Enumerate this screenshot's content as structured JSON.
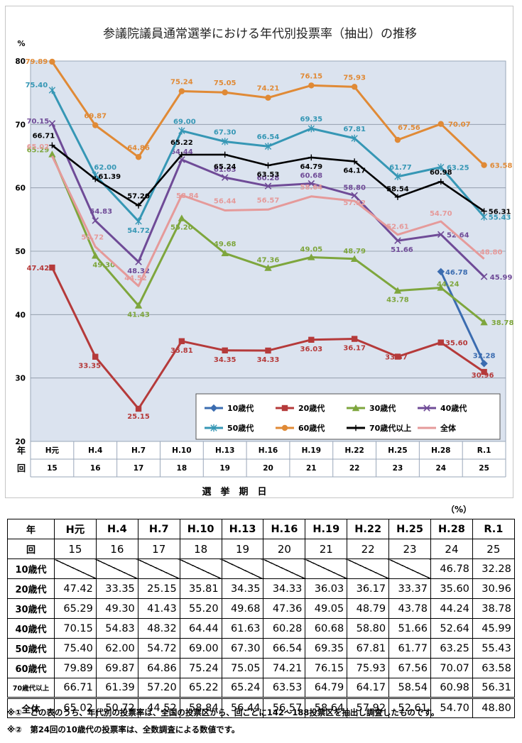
{
  "chart_data": {
    "type": "line",
    "title": "参議院議員通常選挙における年代別投票率（抽出）の推移",
    "ylabel": "%",
    "xlabel": "選挙期日",
    "ylim": [
      20,
      80
    ],
    "yticks": [
      "20",
      "30",
      "40",
      "50",
      "60",
      "70",
      "80"
    ],
    "grid": true,
    "legend_position": "inside-bottom-right",
    "row_label_era": "年",
    "row_label_index": "回",
    "categories": [
      "H元",
      "H.4",
      "H.7",
      "H.10",
      "H.13",
      "H.16",
      "H.19",
      "H.22",
      "H.25",
      "H.28",
      "R.1"
    ],
    "election_numbers": [
      "15",
      "16",
      "17",
      "18",
      "19",
      "20",
      "21",
      "22",
      "23",
      "24",
      "25"
    ],
    "series": [
      {
        "name": "10歳代",
        "color": "#3b6cb0",
        "marker": "diamond",
        "values": [
          null,
          null,
          null,
          null,
          null,
          null,
          null,
          null,
          null,
          46.78,
          32.28
        ],
        "labels": [
          null,
          null,
          null,
          null,
          null,
          null,
          null,
          null,
          null,
          "46.78",
          "32.28"
        ]
      },
      {
        "name": "20歳代",
        "color": "#b53a3a",
        "marker": "square",
        "values": [
          47.42,
          33.35,
          25.15,
          35.81,
          34.35,
          34.33,
          36.03,
          36.17,
          33.37,
          35.6,
          30.96
        ],
        "labels": [
          "47.42",
          "33.35",
          "25.15",
          "35.81",
          "34.35",
          "34.33",
          "36.03",
          "36.17",
          "33.37",
          "35.60",
          "30.96"
        ]
      },
      {
        "name": "30歳代",
        "color": "#7ea63d",
        "marker": "triangle",
        "values": [
          65.29,
          49.3,
          41.43,
          55.2,
          49.68,
          47.36,
          49.05,
          48.79,
          43.78,
          44.24,
          38.78
        ],
        "labels": [
          "65.29",
          "49.30",
          "41.43",
          "55.20",
          "49.68",
          "47.36",
          "49.05",
          "48.79",
          "43.78",
          "44.24",
          "38.78"
        ]
      },
      {
        "name": "40歳代",
        "color": "#6f4b97",
        "marker": "x",
        "values": [
          70.15,
          54.83,
          48.32,
          64.44,
          61.63,
          60.28,
          60.68,
          58.8,
          51.66,
          52.64,
          45.99
        ],
        "labels": [
          "70.15",
          "54.83",
          "48.32",
          "64.44",
          "61.63",
          "60.28",
          "60.68",
          "58.80",
          "51.66",
          "52.64",
          "45.99"
        ]
      },
      {
        "name": "50歳代",
        "color": "#3697b5",
        "marker": "star",
        "values": [
          75.4,
          62.0,
          54.72,
          69.0,
          67.3,
          66.54,
          69.35,
          67.81,
          61.77,
          63.25,
          55.43
        ],
        "labels": [
          "75.40",
          "62.00",
          "54.72",
          "69.00",
          "67.30",
          "66.54",
          "69.35",
          "67.81",
          "61.77",
          "63.25",
          "55.43"
        ]
      },
      {
        "name": "60歳代",
        "color": "#e08a36",
        "marker": "circle",
        "values": [
          79.89,
          69.87,
          64.86,
          75.24,
          75.05,
          74.21,
          76.15,
          75.93,
          67.56,
          70.07,
          63.58
        ],
        "labels": [
          "79.89",
          "69.87",
          "64.86",
          "75.24",
          "75.05",
          "74.21",
          "76.15",
          "75.93",
          "67.56",
          "70.07",
          "63.58"
        ]
      },
      {
        "name": "70歳代以上",
        "color": "#000000",
        "marker": "plus",
        "values": [
          66.71,
          61.39,
          57.2,
          65.22,
          65.24,
          63.53,
          64.79,
          64.17,
          58.54,
          60.98,
          56.31
        ],
        "labels": [
          "66.71",
          "61.39",
          "57.20",
          "65.22",
          "65.24",
          "63.53",
          "64.79",
          "64.17",
          "58.54",
          "60.98",
          "56.31"
        ]
      },
      {
        "name": "全体",
        "color": "#e59a9a",
        "marker": "none",
        "values": [
          65.02,
          50.72,
          44.52,
          58.84,
          56.44,
          56.57,
          58.64,
          57.92,
          52.61,
          54.7,
          48.8
        ],
        "labels": [
          "65.02",
          "50.72",
          "44.52",
          "58.84",
          "56.44",
          "56.57",
          "58.64",
          "57.92",
          "52.61",
          "54.70",
          "48.80"
        ]
      }
    ]
  },
  "table": {
    "unit": "（%）",
    "header_era_label": "年",
    "header_index_label": "回",
    "eras": [
      "H元",
      "H.4",
      "H.7",
      "H.10",
      "H.13",
      "H.16",
      "H.19",
      "H.22",
      "H.25",
      "H.28",
      "R.1"
    ],
    "indices": [
      "15",
      "16",
      "17",
      "18",
      "19",
      "20",
      "21",
      "22",
      "23",
      "24",
      "25"
    ],
    "rows": [
      {
        "label": "10歳代",
        "values": [
          "",
          "",
          "",
          "",
          "",
          "",
          "",
          "",
          "",
          "46.78",
          "32.28"
        ]
      },
      {
        "label": "20歳代",
        "values": [
          "47.42",
          "33.35",
          "25.15",
          "35.81",
          "34.35",
          "34.33",
          "36.03",
          "36.17",
          "33.37",
          "35.60",
          "30.96"
        ]
      },
      {
        "label": "30歳代",
        "values": [
          "65.29",
          "49.30",
          "41.43",
          "55.20",
          "49.68",
          "47.36",
          "49.05",
          "48.79",
          "43.78",
          "44.24",
          "38.78"
        ]
      },
      {
        "label": "40歳代",
        "values": [
          "70.15",
          "54.83",
          "48.32",
          "64.44",
          "61.63",
          "60.28",
          "60.68",
          "58.80",
          "51.66",
          "52.64",
          "45.99"
        ]
      },
      {
        "label": "50歳代",
        "values": [
          "75.40",
          "62.00",
          "54.72",
          "69.00",
          "67.30",
          "66.54",
          "69.35",
          "67.81",
          "61.77",
          "63.25",
          "55.43"
        ]
      },
      {
        "label": "60歳代",
        "values": [
          "79.89",
          "69.87",
          "64.86",
          "75.24",
          "75.05",
          "74.21",
          "76.15",
          "75.93",
          "67.56",
          "70.07",
          "63.58"
        ]
      },
      {
        "label": "70歳代以上",
        "values": [
          "66.71",
          "61.39",
          "57.20",
          "65.22",
          "65.24",
          "63.53",
          "64.79",
          "64.17",
          "58.54",
          "60.98",
          "56.31"
        ]
      }
    ],
    "total_row": {
      "label": "全体",
      "values": [
        "65.02",
        "50.72",
        "44.52",
        "58.84",
        "56.44",
        "56.57",
        "58.64",
        "57.92",
        "52.61",
        "54.70",
        "48.80"
      ]
    }
  },
  "footnotes": [
    "※①　この表のうち、年代別の投票率は、全国の投票区から、回ごとに142～188投票区を抽出し調査したものです。",
    "※②　第24回の10歳代の投票率は、全数調査による数値です。"
  ]
}
